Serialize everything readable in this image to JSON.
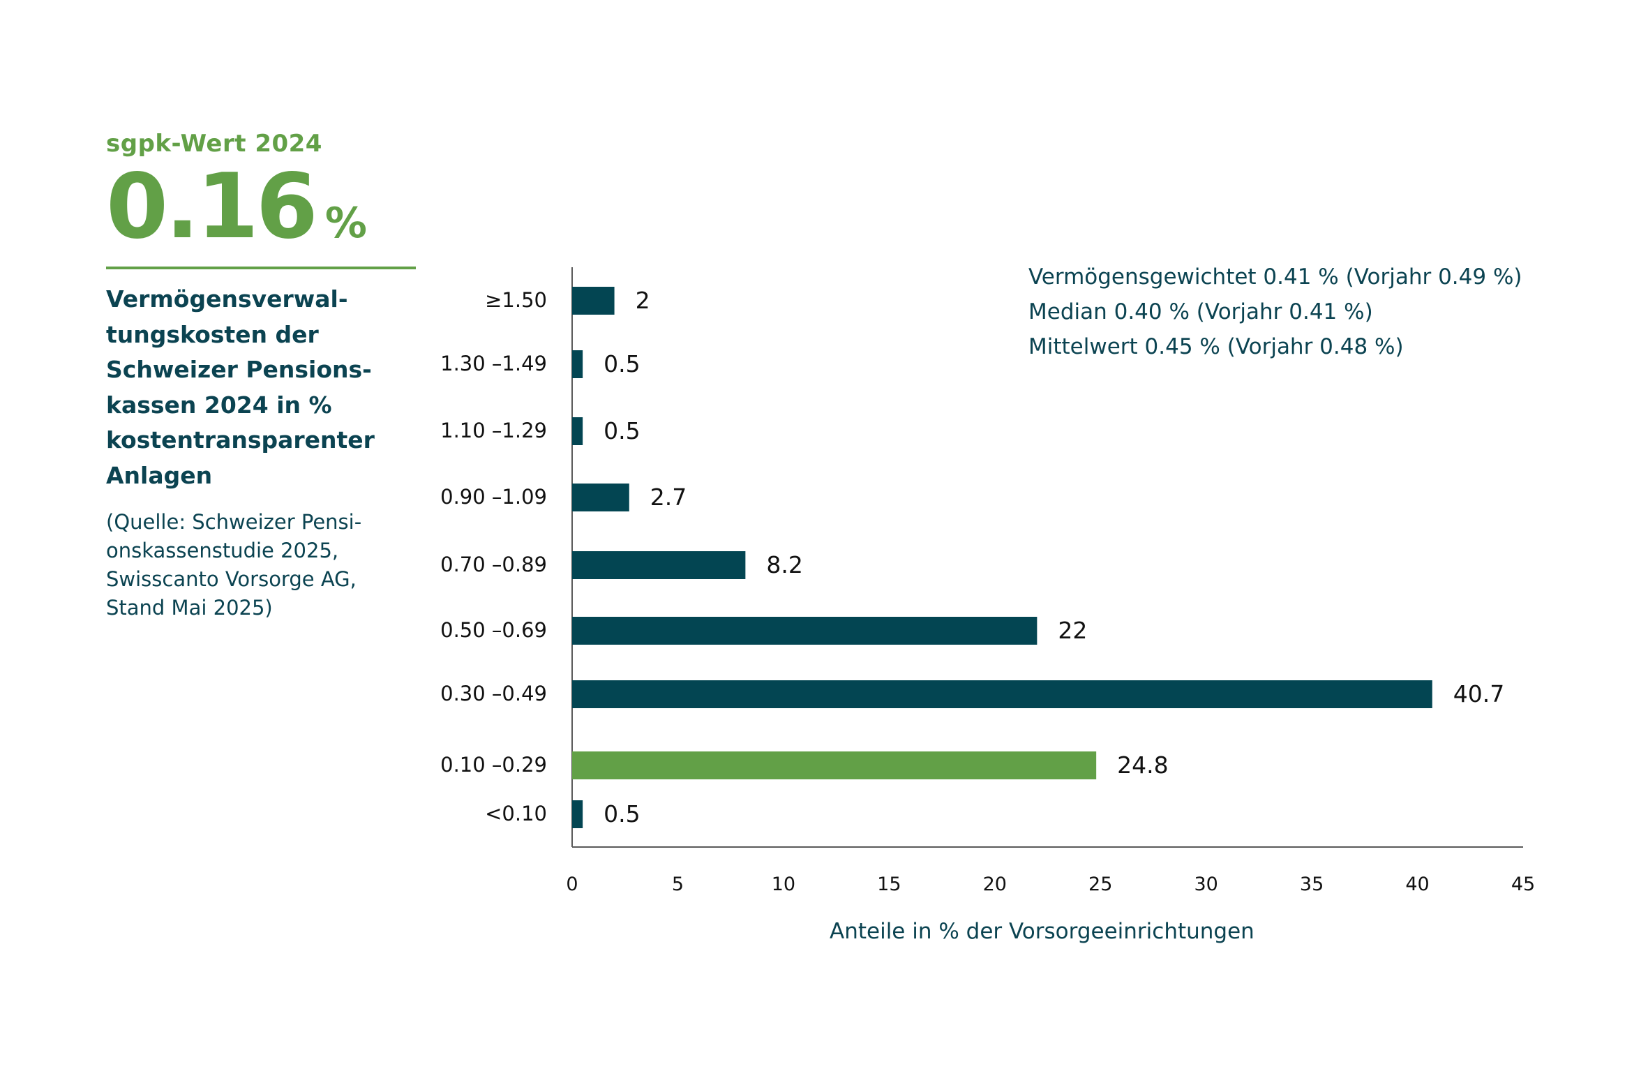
{
  "kpi": {
    "label": "sgpk-Wert 2024",
    "value": "0.16",
    "unit": "%"
  },
  "panel": {
    "title": "Vermögensverwal-tungskosten der Schweizer Pensions-kassen 2024 in % kostentransparenter Anlagen",
    "title_lines": [
      "Vermögensverwal-",
      "tungskosten der",
      "Schweizer Pensions-",
      "kassen 2024 in %",
      "kostentransparenter",
      "Anlagen"
    ],
    "source_lines": [
      "(Quelle: Schweizer Pensi-",
      "onskassenstudie 2025,",
      "Swisscanto Vorsorge AG,",
      "Stand Mai 2025)"
    ]
  },
  "annotations": [
    "Vermögensgewichtet 0.41 % (Vorjahr 0.49 %)",
    "Median 0.40 % (Vorjahr 0.41 %)",
    "Mittelwert 0.45 % (Vorjahr 0.48 %)"
  ],
  "colors": {
    "bar": "#034552",
    "highlight": "#62a047",
    "text": "#0b4351",
    "axis": "#5a5a5a"
  },
  "chart_data": {
    "type": "bar",
    "orientation": "horizontal",
    "categories": [
      "≥1.50",
      "1.30 –1.49",
      "1.10 –1.29",
      "0.90 –1.09",
      "0.70 –0.89",
      "0.50 –0.69",
      "0.30 –0.49",
      "0.10 –0.29",
      "<0.10"
    ],
    "values": [
      2,
      0.5,
      0.5,
      2.7,
      8.2,
      22,
      40.7,
      24.8,
      0.5
    ],
    "value_labels": [
      "2",
      "0.5",
      "0.5",
      "2.7",
      "8.2",
      "22",
      "40.7",
      "24.8",
      "0.5"
    ],
    "highlight_category": "0.10 –0.29",
    "xlabel": "Anteile in % der Vorsorgeeinrichtungen",
    "ylabel": "",
    "xlim": [
      0,
      45
    ],
    "xticks": [
      0,
      5,
      10,
      15,
      20,
      25,
      30,
      35,
      40,
      45
    ],
    "grid": false,
    "legend": "none"
  }
}
